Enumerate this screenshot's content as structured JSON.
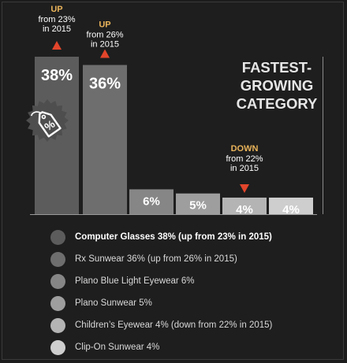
{
  "chart_data": {
    "type": "bar",
    "title": "FASTEST-\nGROWING\nCATEGORY",
    "categories": [
      "Computer Glasses",
      "Rx Sunwear",
      "Plano Blue Light Eyewear",
      "Plano Sunwear",
      "Children's Eyewear",
      "Clip-On Sunwear"
    ],
    "values": [
      38,
      36,
      6,
      5,
      4,
      4
    ],
    "value_labels": [
      "38%",
      "36%",
      "6%",
      "5%",
      "4%",
      "4%"
    ],
    "ylim": [
      0,
      38
    ],
    "colors": [
      "#5c5c5c",
      "#6e6e6e",
      "#868686",
      "#9e9e9e",
      "#b4b4b4",
      "#cecece"
    ],
    "annotations": [
      {
        "index": 0,
        "direction": "up",
        "heading": "UP",
        "text": "from 23%\nin 2015"
      },
      {
        "index": 1,
        "direction": "up",
        "heading": "UP",
        "text": "from 26%\nin 2015"
      },
      {
        "index": 4,
        "direction": "down",
        "heading": "DOWN",
        "text": "from 22%\nin 2015"
      }
    ],
    "legend": [
      "Computer Glasses 38% (up from 23% in 2015)",
      "Rx Sunwear 36% (up from 26% in 2015)",
      "Plano Blue Light Eyewear 6%",
      "Plano Sunwear 5%",
      "Children’s Eyewear 4% (down from 22% in 2015)",
      "Clip-On Sunwear 4%"
    ],
    "legend_position": "bottom",
    "grid": false,
    "badge_icon": "price-tag-icon",
    "badge_icon_text": "%"
  },
  "colors": {
    "background": "#1e1e1e",
    "heading": "#e8b35a",
    "arrow": "#e2452b",
    "title": "#e6e6e6"
  }
}
